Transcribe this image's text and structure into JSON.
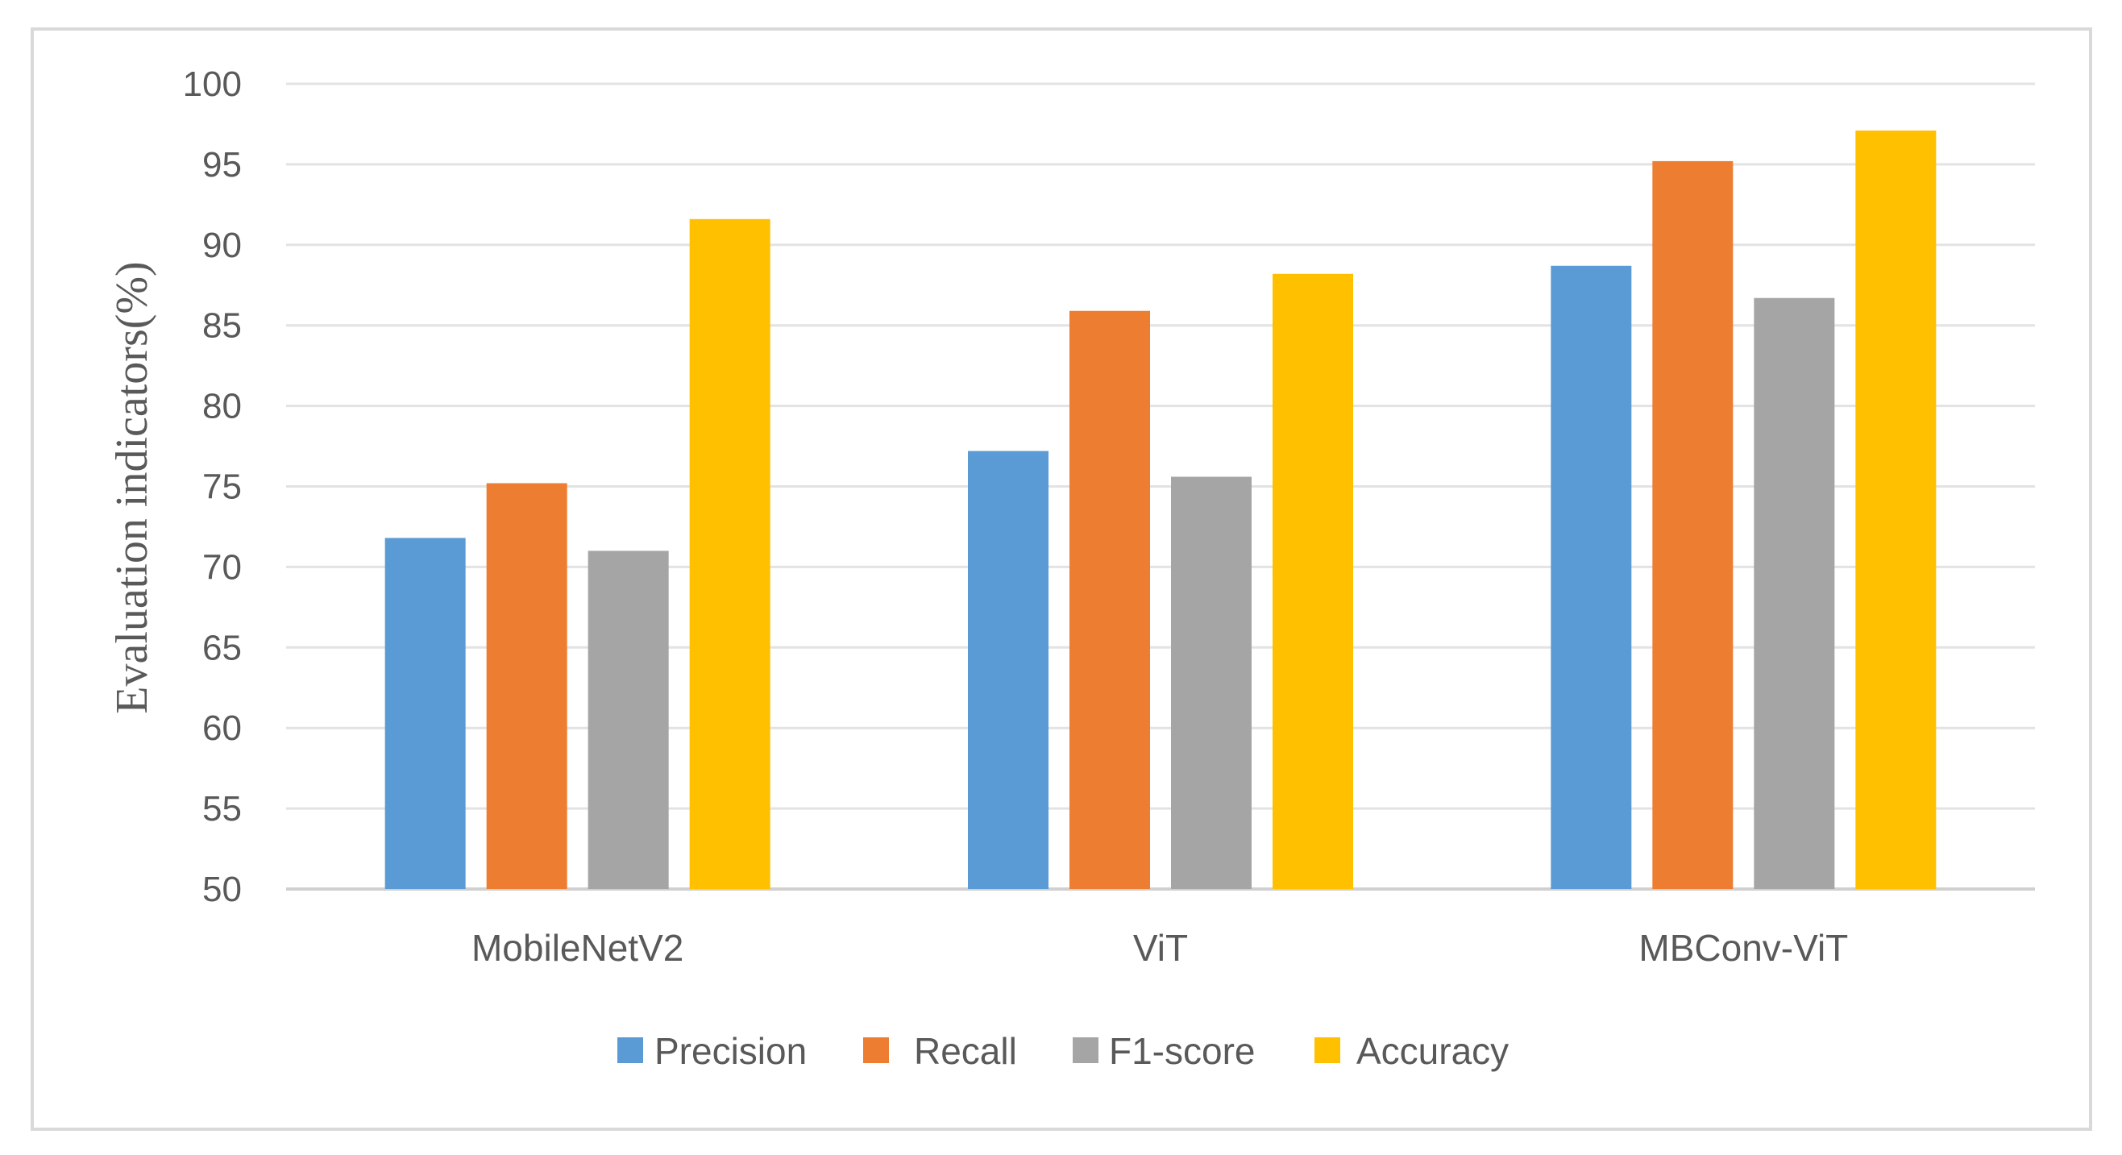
{
  "chart_data": {
    "type": "bar",
    "categories": [
      "MobileNetV2",
      "ViT",
      "MBConv-ViT"
    ],
    "series": [
      {
        "name": "Precision",
        "color": "#5b9bd5",
        "values": [
          71.8,
          77.2,
          88.7
        ]
      },
      {
        "name": "Recall",
        "color": "#ed7d31",
        "values": [
          75.2,
          85.9,
          95.2
        ]
      },
      {
        "name": "F1-score",
        "color": "#a5a5a5",
        "values": [
          71.0,
          75.6,
          86.7
        ]
      },
      {
        "name": "Accuracy",
        "color": "#ffc000",
        "values": [
          91.6,
          88.2,
          97.1
        ]
      }
    ],
    "ylabel": "Evaluation indicators(%)",
    "ylim": [
      50,
      100
    ],
    "yticks": [
      "50",
      "55",
      "60",
      "65",
      "70",
      "75",
      "80",
      "85",
      "90",
      "95",
      "100"
    ],
    "grid": true,
    "legend_position": "bottom"
  }
}
